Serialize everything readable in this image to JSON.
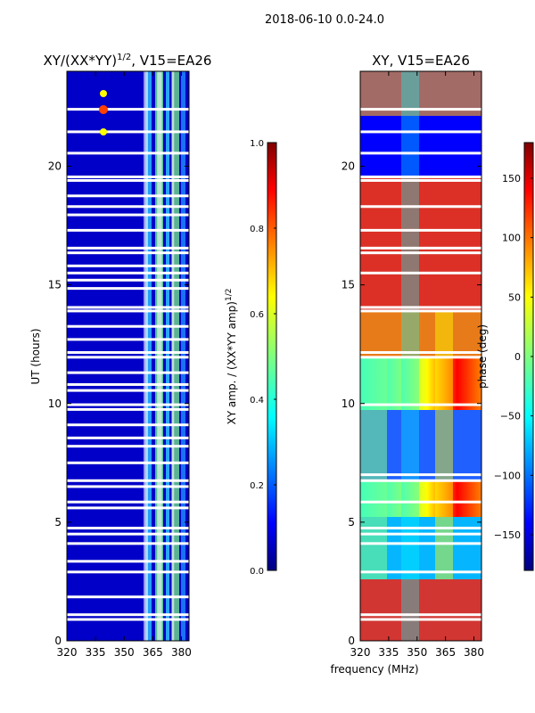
{
  "figure": {
    "suptitle": "2018-06-10 0.0-24.0",
    "xlabel_shared": "frequency (MHz)"
  },
  "chart_data": [
    {
      "type": "heatmap",
      "title_main": "XY/(XX*YY)",
      "title_sup": "1/2",
      "title_tail": ", V15=EA26",
      "ylabel": "UT (hours)",
      "x_range": [
        320,
        384
      ],
      "y_range": [
        0,
        24
      ],
      "xticks": [
        320,
        335,
        350,
        365,
        380
      ],
      "yticks": [
        0,
        5,
        10,
        15,
        20
      ],
      "xtick_labels": [
        "320",
        "335",
        "350",
        "365",
        "380"
      ],
      "ytick_labels": [
        "0",
        "5",
        "10",
        "15",
        "20"
      ],
      "flagged_channel_bands_mhz": [
        [
          360.2,
          362.5
        ],
        [
          367.3,
          369.8
        ],
        [
          374.8,
          376.2
        ]
      ],
      "flagged_time_rows_hours": [
        0.9,
        1.1,
        1.85,
        2.9,
        3.35,
        4.1,
        4.5,
        4.75,
        5.6,
        5.85,
        6.5,
        6.75,
        7.5,
        8.2,
        8.55,
        9.1,
        9.75,
        9.95,
        10.55,
        10.8,
        11.3,
        11.95,
        12.15,
        12.7,
        13.25,
        13.9,
        14.05,
        14.85,
        15.2,
        15.5,
        15.8,
        16.35,
        16.55,
        17.3,
        17.95,
        18.3,
        18.75,
        19.4,
        19.55,
        20.55,
        21.45,
        22.4
      ],
      "colorbar": {
        "label_main": "XY amp. / (XX*YY amp)",
        "label_sup": "1/2",
        "range": [
          0.0,
          1.0
        ],
        "ticks": [
          0.0,
          0.2,
          0.4,
          0.6,
          0.8,
          1.0
        ],
        "tick_labels": [
          "0.0",
          "0.2",
          "0.4",
          "0.6",
          "0.8",
          "1.0"
        ]
      }
    },
    {
      "type": "heatmap",
      "title": "XY, V15=EA26",
      "x_range": [
        320,
        384
      ],
      "y_range": [
        0,
        24
      ],
      "xticks": [
        320,
        335,
        350,
        365,
        380
      ],
      "yticks": [
        0,
        5,
        10,
        15,
        20
      ],
      "xtick_labels": [
        "320",
        "335",
        "350",
        "365",
        "380"
      ],
      "ytick_labels": [
        "0",
        "5",
        "10",
        "15",
        "20"
      ],
      "flagged_time_rows_hours": [
        0.9,
        1.1,
        2.9,
        4.1,
        4.5,
        4.75,
        5.85,
        6.75,
        7.0,
        9.95,
        11.95,
        12.15,
        13.9,
        14.05,
        15.5,
        16.35,
        16.55,
        17.3,
        18.3,
        19.4,
        19.55,
        20.55,
        21.45,
        22.4
      ],
      "colorbar": {
        "label": "phase (deg)",
        "range": [
          -180,
          180
        ],
        "ticks": [
          -150,
          -100,
          -50,
          0,
          50,
          100,
          150
        ],
        "tick_labels": [
          "−150",
          "−100",
          "−50",
          "0",
          "50",
          "100",
          "150"
        ]
      }
    }
  ],
  "colors": {
    "jet": [
      "#00007f",
      "#0000ff",
      "#007fff",
      "#00ffff",
      "#7fff7f",
      "#ffff00",
      "#ff7f00",
      "#ff0000",
      "#7f0000"
    ],
    "flag": "#ffffff"
  }
}
